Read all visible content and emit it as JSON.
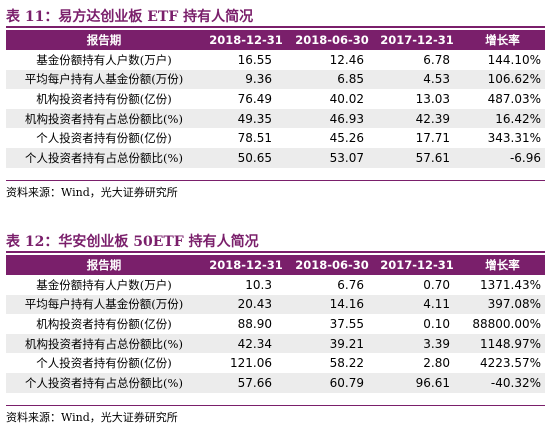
{
  "table1": {
    "title": "表 11：易方达创业板 ETF 持有人简况",
    "headers": [
      "报告期",
      "2018-12-31",
      "2018-06-30",
      "2017-12-31",
      "增长率"
    ],
    "rows": [
      {
        "label": "基金份额持有人户数(万户)",
        "values": [
          "16.55",
          "12.46",
          "6.78",
          "144.10%"
        ]
      },
      {
        "label": "平均每户持有人基金份额(万份)",
        "values": [
          "9.36",
          "6.85",
          "4.53",
          "106.62%"
        ]
      },
      {
        "label": "机构投资者持有份额(亿份)",
        "values": [
          "76.49",
          "40.02",
          "13.03",
          "487.03%"
        ]
      },
      {
        "label": "机构投资者持有占总份额比(%)",
        "values": [
          "49.35",
          "46.93",
          "42.39",
          "16.42%"
        ]
      },
      {
        "label": "个人投资者持有份额(亿份)",
        "values": [
          "78.51",
          "45.26",
          "17.71",
          "343.31%"
        ]
      },
      {
        "label": "个人投资者持有占总份额比(%)",
        "values": [
          "50.65",
          "53.07",
          "57.61",
          "-6.96"
        ]
      }
    ],
    "source": "资料来源：Wind，光大证券研究所"
  },
  "table2": {
    "title": "表 12：华安创业板 50ETF 持有人简况",
    "headers": [
      "报告期",
      "2018-12-31",
      "2018-06-30",
      "2017-12-31",
      "增长率"
    ],
    "rows": [
      {
        "label": "基金份额持有人户数(万户)",
        "values": [
          "10.3",
          "6.76",
          "0.70",
          "1371.43%"
        ]
      },
      {
        "label": "平均每户持有人基金份额(万份)",
        "values": [
          "20.43",
          "14.16",
          "4.11",
          "397.08%"
        ]
      },
      {
        "label": "机构投资者持有份额(亿份)",
        "values": [
          "88.90",
          "37.55",
          "0.10",
          "88800.00%"
        ]
      },
      {
        "label": "机构投资者持有占总份额比(%)",
        "values": [
          "42.34",
          "39.21",
          "3.39",
          "1148.97%"
        ]
      },
      {
        "label": "个人投资者持有份额(亿份)",
        "values": [
          "121.06",
          "58.22",
          "2.80",
          "4223.57%"
        ]
      },
      {
        "label": "个人投资者持有占总份额比(%)",
        "values": [
          "57.66",
          "60.79",
          "96.61",
          "-40.32%"
        ]
      }
    ],
    "source": "资料来源：Wind，光大证券研究所"
  },
  "colors": {
    "accent": "#7a1f6b",
    "row_alt": "#ececec"
  }
}
